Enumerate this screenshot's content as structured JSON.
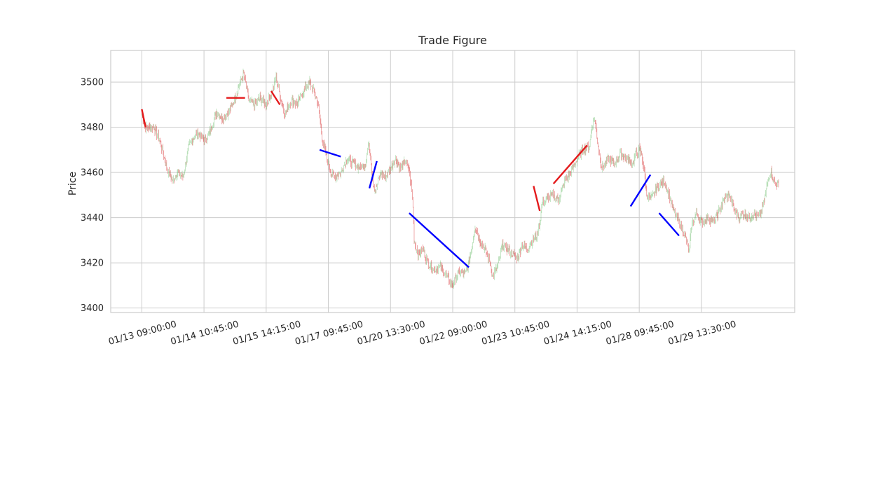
{
  "chart_data": {
    "type": "line",
    "title": "Trade Figure",
    "xlabel": "",
    "ylabel": "Price",
    "ylim": [
      3398,
      3514
    ],
    "yticks": [
      3400,
      3420,
      3440,
      3460,
      3480,
      3500
    ],
    "grid": true,
    "x_tick_labels": [
      "01/13 09:00:00",
      "01/14 10:45:00",
      "01/15 14:15:00",
      "01/17 09:45:00",
      "01/20 13:30:00",
      "01/22 09:00:00",
      "01/23 10:45:00",
      "01/24 14:15:00",
      "01/28 09:45:00",
      "01/29 13:30:00"
    ],
    "bar_index_range": [
      -25,
      525
    ],
    "x_tick_bar_index": [
      0,
      50,
      100,
      150,
      200,
      250,
      300,
      350,
      400,
      450
    ],
    "price_series": {
      "name": "",
      "up_color": "#2ca02c",
      "down_color": "#d62728",
      "anchors": [
        [
          0,
          3486
        ],
        [
          3,
          3480
        ],
        [
          10,
          3480
        ],
        [
          15,
          3473
        ],
        [
          20,
          3462
        ],
        [
          25,
          3456
        ],
        [
          28,
          3460
        ],
        [
          33,
          3458
        ],
        [
          38,
          3472
        ],
        [
          45,
          3478
        ],
        [
          50,
          3474
        ],
        [
          55,
          3478
        ],
        [
          60,
          3487
        ],
        [
          65,
          3484
        ],
        [
          70,
          3487
        ],
        [
          75,
          3493
        ],
        [
          78,
          3498
        ],
        [
          82,
          3504
        ],
        [
          86,
          3492
        ],
        [
          90,
          3490
        ],
        [
          95,
          3493
        ],
        [
          100,
          3490
        ],
        [
          105,
          3496
        ],
        [
          108,
          3502
        ],
        [
          112,
          3492
        ],
        [
          115,
          3486
        ],
        [
          120,
          3492
        ],
        [
          125,
          3490
        ],
        [
          130,
          3496
        ],
        [
          135,
          3500
        ],
        [
          138,
          3496
        ],
        [
          141,
          3492
        ],
        [
          143,
          3485
        ],
        [
          145,
          3475
        ],
        [
          148,
          3468
        ],
        [
          152,
          3460
        ],
        [
          155,
          3458
        ],
        [
          160,
          3460
        ],
        [
          165,
          3466
        ],
        [
          170,
          3464
        ],
        [
          175,
          3462
        ],
        [
          180,
          3464
        ],
        [
          182,
          3472
        ],
        [
          184,
          3468
        ],
        [
          186,
          3455
        ],
        [
          188,
          3452
        ],
        [
          192,
          3460
        ],
        [
          196,
          3458
        ],
        [
          200,
          3462
        ],
        [
          204,
          3466
        ],
        [
          208,
          3462
        ],
        [
          212,
          3465
        ],
        [
          215,
          3461
        ],
        [
          217,
          3452
        ],
        [
          218,
          3445
        ],
        [
          219,
          3430
        ],
        [
          222,
          3424
        ],
        [
          226,
          3426
        ],
        [
          230,
          3420
        ],
        [
          235,
          3417
        ],
        [
          240,
          3418
        ],
        [
          245,
          3414
        ],
        [
          250,
          3410
        ],
        [
          255,
          3416
        ],
        [
          260,
          3415
        ],
        [
          263,
          3420
        ],
        [
          265,
          3426
        ],
        [
          268,
          3436
        ],
        [
          272,
          3430
        ],
        [
          276,
          3426
        ],
        [
          280,
          3420
        ],
        [
          282,
          3414
        ],
        [
          286,
          3418
        ],
        [
          290,
          3428
        ],
        [
          294,
          3426
        ],
        [
          298,
          3424
        ],
        [
          302,
          3422
        ],
        [
          306,
          3428
        ],
        [
          310,
          3426
        ],
        [
          314,
          3430
        ],
        [
          318,
          3432
        ],
        [
          320,
          3438
        ],
        [
          322,
          3446
        ],
        [
          325,
          3448
        ],
        [
          330,
          3450
        ],
        [
          335,
          3448
        ],
        [
          340,
          3456
        ],
        [
          345,
          3460
        ],
        [
          350,
          3466
        ],
        [
          355,
          3470
        ],
        [
          360,
          3472
        ],
        [
          362,
          3480
        ],
        [
          364,
          3484
        ],
        [
          366,
          3476
        ],
        [
          368,
          3468
        ],
        [
          370,
          3462
        ],
        [
          375,
          3466
        ],
        [
          380,
          3464
        ],
        [
          385,
          3468
        ],
        [
          390,
          3466
        ],
        [
          395,
          3464
        ],
        [
          397,
          3468
        ],
        [
          400,
          3470
        ],
        [
          402,
          3468
        ],
        [
          404,
          3460
        ],
        [
          406,
          3450
        ],
        [
          409,
          3448
        ],
        [
          413,
          3452
        ],
        [
          417,
          3455
        ],
        [
          420,
          3456
        ],
        [
          424,
          3450
        ],
        [
          427,
          3444
        ],
        [
          430,
          3440
        ],
        [
          434,
          3436
        ],
        [
          438,
          3430
        ],
        [
          440,
          3424
        ],
        [
          442,
          3436
        ],
        [
          446,
          3442
        ],
        [
          450,
          3438
        ],
        [
          455,
          3440
        ],
        [
          460,
          3438
        ],
        [
          465,
          3444
        ],
        [
          468,
          3448
        ],
        [
          472,
          3450
        ],
        [
          476,
          3444
        ],
        [
          480,
          3440
        ],
        [
          484,
          3442
        ],
        [
          488,
          3440
        ],
        [
          492,
          3442
        ],
        [
          496,
          3440
        ],
        [
          500,
          3446
        ],
        [
          502,
          3452
        ],
        [
          504,
          3458
        ],
        [
          506,
          3460
        ],
        [
          508,
          3456
        ],
        [
          510,
          3455
        ],
        [
          512,
          3454
        ]
      ]
    },
    "trades": [
      {
        "color": "#e41a1c",
        "x": [
          0,
          3
        ],
        "y": [
          3488,
          3480
        ]
      },
      {
        "color": "#e41a1c",
        "x": [
          68,
          83
        ],
        "y": [
          3493,
          3493
        ]
      },
      {
        "color": "#e41a1c",
        "x": [
          104,
          111
        ],
        "y": [
          3496,
          3490
        ]
      },
      {
        "color": "#0000ff",
        "x": [
          143,
          160
        ],
        "y": [
          3470,
          3467
        ]
      },
      {
        "color": "#0000ff",
        "x": [
          183,
          189
        ],
        "y": [
          3453,
          3465
        ]
      },
      {
        "color": "#0000ff",
        "x": [
          215,
          263
        ],
        "y": [
          3442,
          3418
        ]
      },
      {
        "color": "#e41a1c",
        "x": [
          315,
          320
        ],
        "y": [
          3454,
          3443
        ]
      },
      {
        "color": "#e41a1c",
        "x": [
          331,
          358
        ],
        "y": [
          3455,
          3472
        ]
      },
      {
        "color": "#0000ff",
        "x": [
          393,
          409
        ],
        "y": [
          3445,
          3459
        ]
      },
      {
        "color": "#0000ff",
        "x": [
          416,
          432
        ],
        "y": [
          3442,
          3432
        ]
      }
    ]
  }
}
